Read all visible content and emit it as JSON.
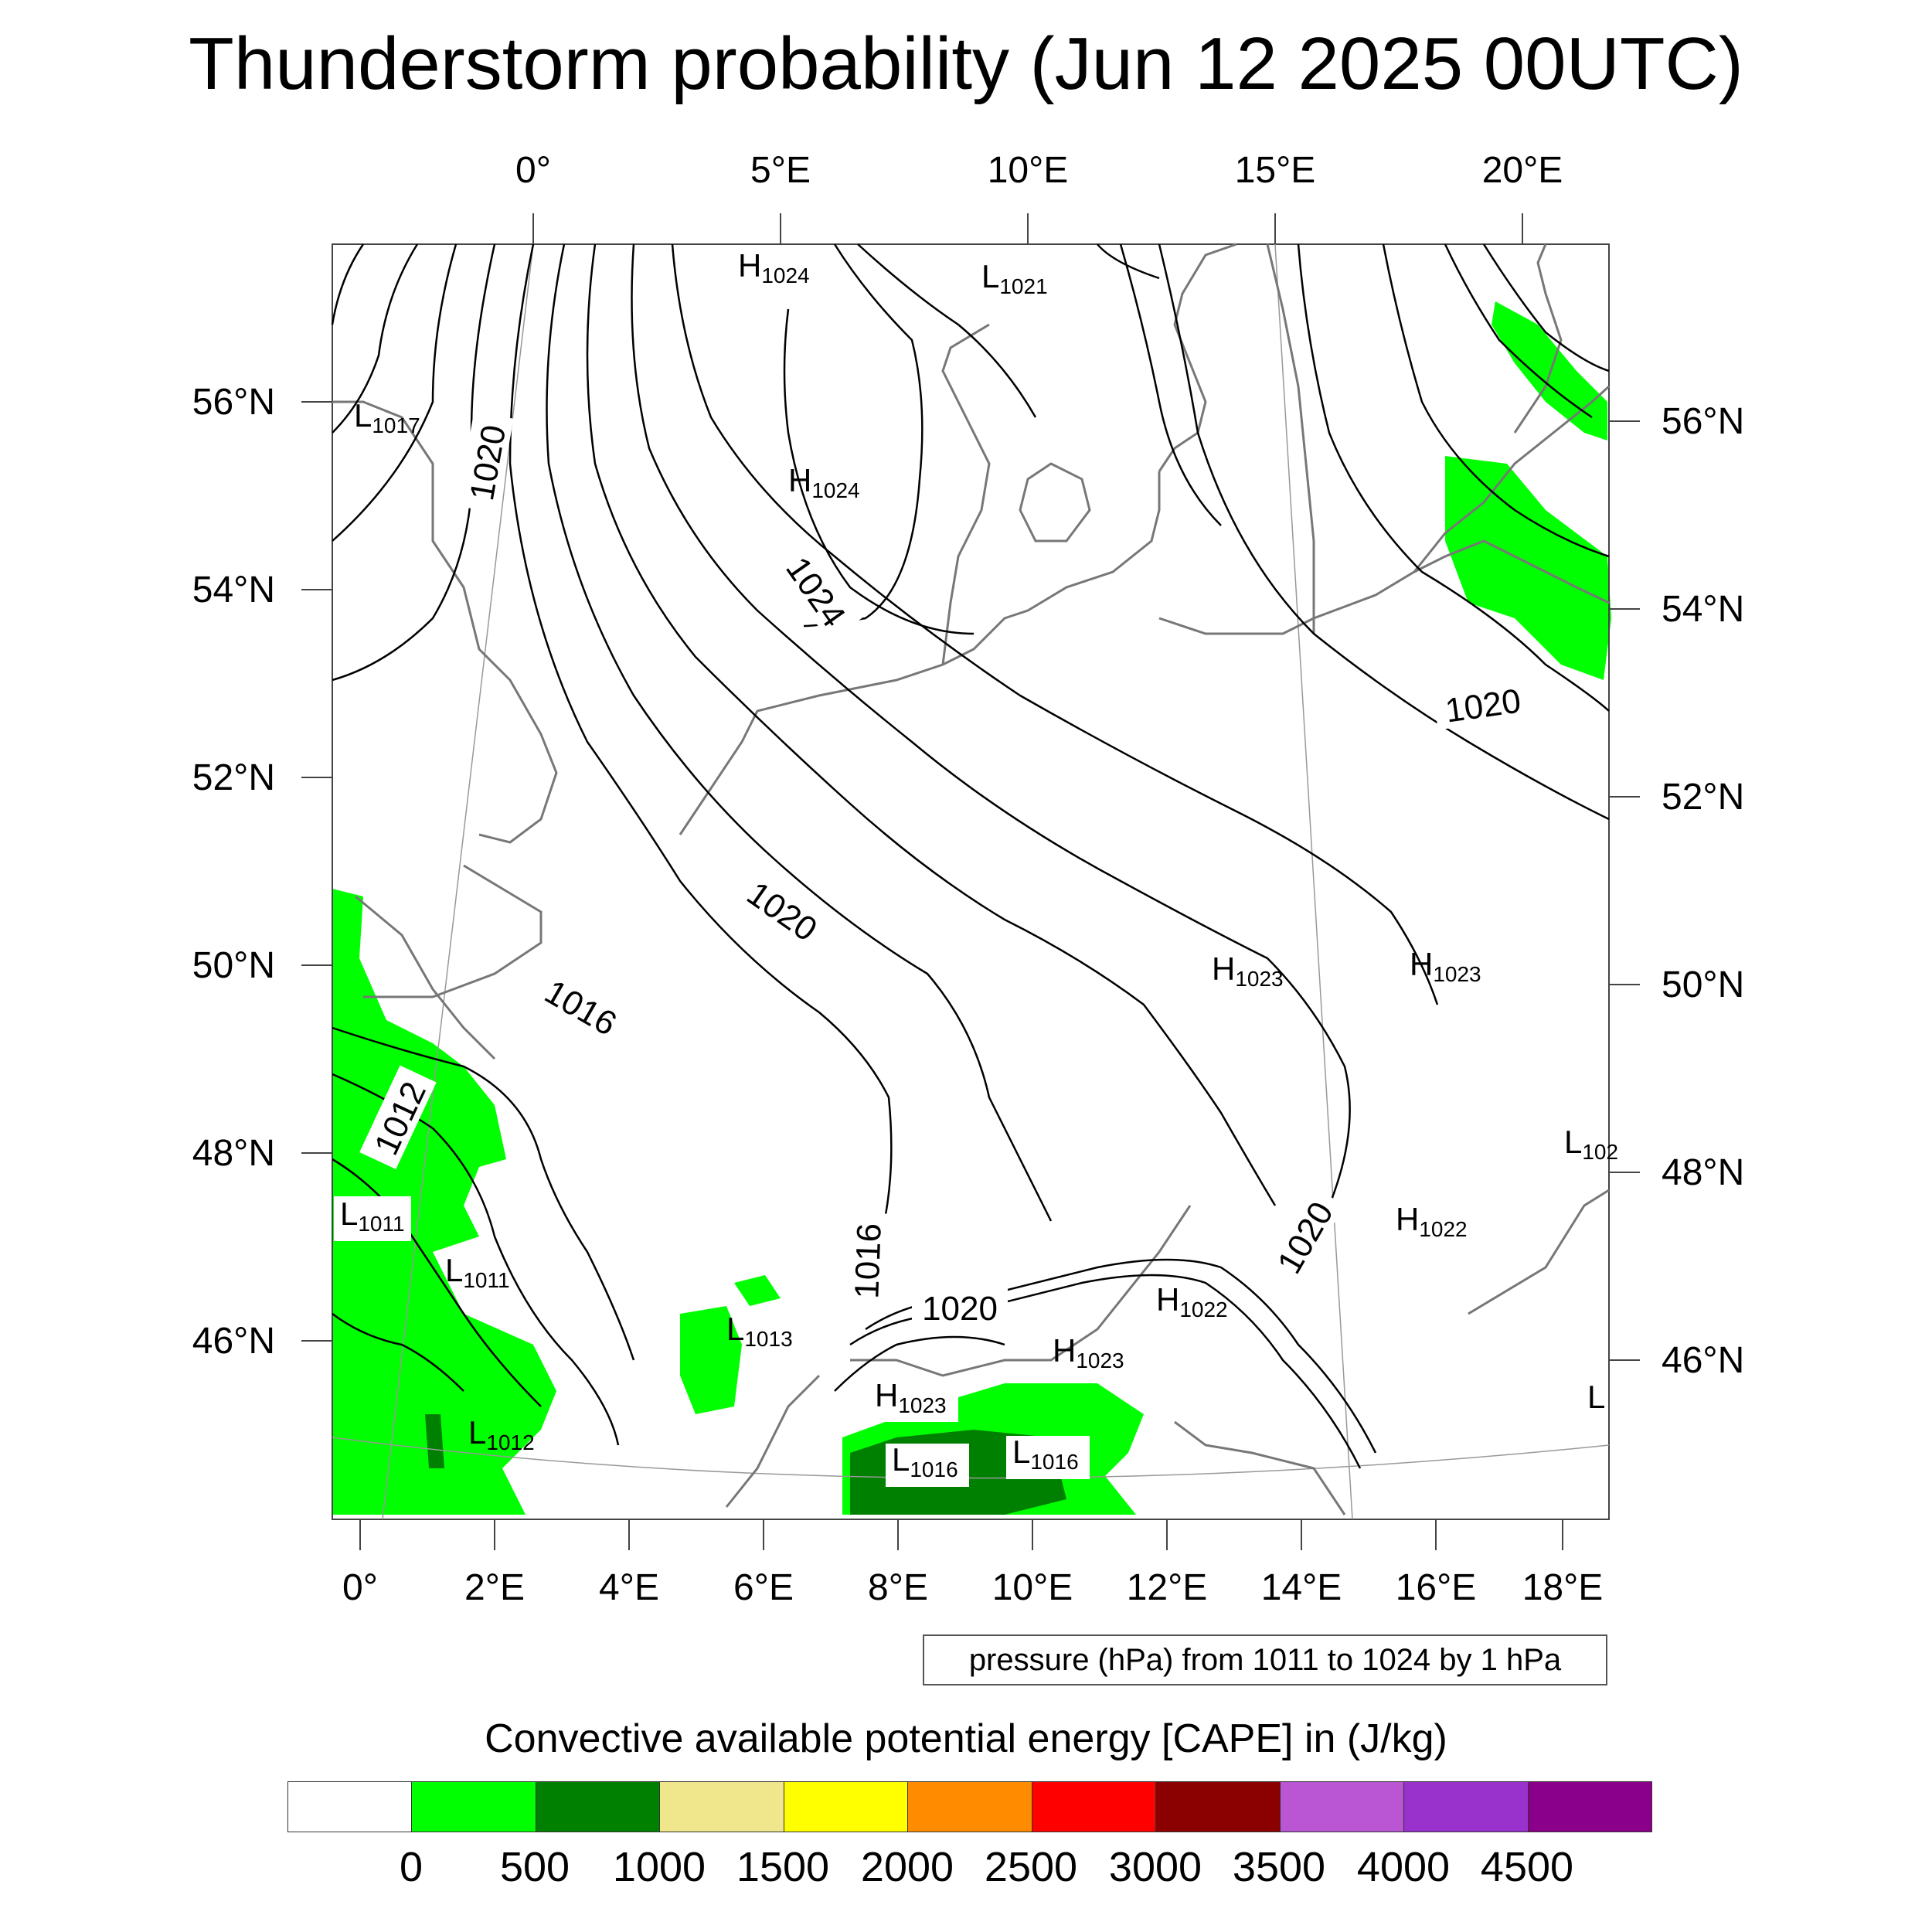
{
  "title": "Thunderstorm probability (Jun 12 2025 00UTC)",
  "top_lon_labels": [
    "0°",
    "5°E",
    "10°E",
    "15°E",
    "20°E"
  ],
  "bottom_lon_labels": [
    "0°",
    "2°E",
    "4°E",
    "6°E",
    "8°E",
    "10°E",
    "12°E",
    "14°E",
    "16°E",
    "18°E"
  ],
  "left_lat_labels": [
    "56°N",
    "54°N",
    "52°N",
    "50°N",
    "48°N",
    "46°N"
  ],
  "right_lat_labels": [
    "56°N",
    "54°N",
    "52°N",
    "50°N",
    "48°N",
    "46°N"
  ],
  "contour_labels": [
    "1020",
    "1024",
    "1020",
    "1020",
    "1016",
    "1012",
    "1016",
    "1020",
    "1020"
  ],
  "pressure_centers": [
    {
      "type": "H",
      "value": "1024"
    },
    {
      "type": "L",
      "value": "1021"
    },
    {
      "type": "L",
      "value": "1017"
    },
    {
      "type": "H",
      "value": "1024"
    },
    {
      "type": "H",
      "value": "1023"
    },
    {
      "type": "H",
      "value": "1023"
    },
    {
      "type": "L",
      "value": "102"
    },
    {
      "type": "H",
      "value": "1022"
    },
    {
      "type": "L",
      "value": "1011"
    },
    {
      "type": "L",
      "value": "1011"
    },
    {
      "type": "L",
      "value": "1013"
    },
    {
      "type": "H",
      "value": "1022"
    },
    {
      "type": "H",
      "value": "1023"
    },
    {
      "type": "H",
      "value": "1023"
    },
    {
      "type": "L",
      "value": "1012"
    },
    {
      "type": "L",
      "value": "1016"
    },
    {
      "type": "L",
      "value": "1016"
    },
    {
      "type": "L",
      "value": ""
    }
  ],
  "info_box": "pressure (hPa) from 1011 to 1024 by 1 hPa",
  "colorbar": {
    "title": "Convective available potential energy [CAPE] in (J/kg)",
    "colors": [
      "#ffffff",
      "#00ff00",
      "#008000",
      "#f0e68c",
      "#ffff00",
      "#ff8c00",
      "#ff0000",
      "#8b0000",
      "#ba55d3",
      "#9932cc",
      "#8b008b"
    ],
    "labels": [
      "0",
      "500",
      "1000",
      "1500",
      "2000",
      "2500",
      "3000",
      "3500",
      "4000",
      "4500"
    ]
  }
}
